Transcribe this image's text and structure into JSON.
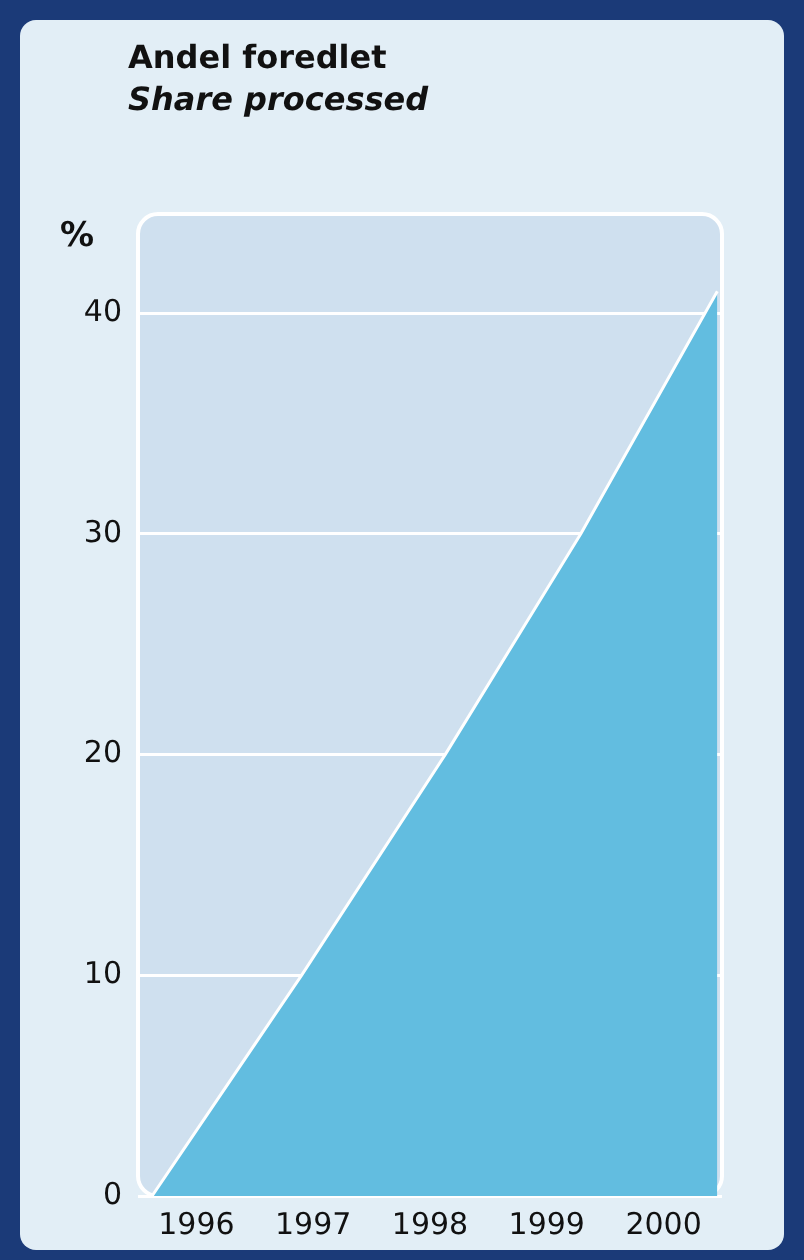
{
  "chart_data": {
    "type": "area",
    "title": "Andel foredlet",
    "subtitle": "Share processed",
    "ylabel": "%",
    "x": [
      1995.62,
      1996.9,
      1998.13,
      1999.29,
      2000.46
    ],
    "series": [
      {
        "color": "#62bde0",
        "values": [
          0,
          10,
          20,
          30,
          41
        ]
      }
    ],
    "xlim": [
      1995.5,
      2000.5
    ],
    "xticks": [
      1996,
      1997,
      1998,
      1999,
      2000
    ],
    "ylim": [
      0,
      44.5
    ],
    "yticks": [
      0,
      10,
      20,
      30,
      40
    ],
    "grid": "y",
    "legend": false,
    "marker": "none",
    "line_style": "solid"
  }
}
